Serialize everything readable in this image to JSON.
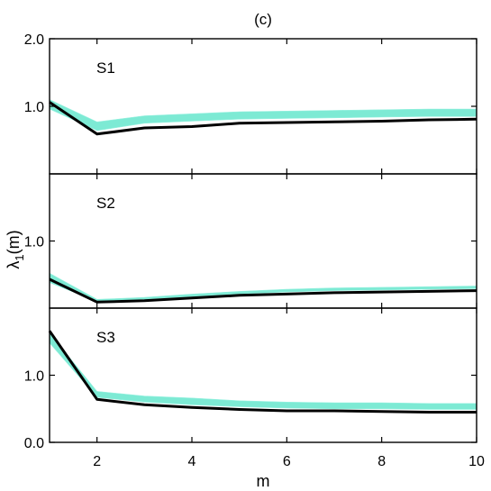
{
  "figure_label": "(c)",
  "ylabel_main": "λ",
  "ylabel_sub": "1",
  "ylabel_suffix": "(m)",
  "colors": {
    "band": "#6fe8d0",
    "mean": "#000000",
    "frame": "#000000"
  },
  "chart_data": [
    {
      "type": "line",
      "panel_label": "S1",
      "x": [
        1,
        2,
        3,
        4,
        5,
        6,
        7,
        8,
        9,
        10
      ],
      "ylim": [
        0.0,
        2.0
      ],
      "yticks": [
        1.0,
        2.0
      ],
      "ytick_labels": [
        "1.0",
        "2.0"
      ],
      "series": [
        {
          "values": [
            1.06,
            0.59,
            0.68,
            0.7,
            0.75,
            0.76,
            0.77,
            0.78,
            0.8,
            0.81
          ]
        }
      ],
      "band_lower": [
        0.96,
        0.64,
        0.75,
        0.78,
        0.81,
        0.82,
        0.83,
        0.84,
        0.85,
        0.85
      ],
      "band_upper": [
        1.1,
        0.77,
        0.86,
        0.89,
        0.92,
        0.93,
        0.94,
        0.95,
        0.96,
        0.96
      ]
    },
    {
      "type": "line",
      "panel_label": "S2",
      "x": [
        1,
        2,
        3,
        4,
        5,
        6,
        7,
        8,
        9,
        10
      ],
      "ylim": [
        0.0,
        2.0
      ],
      "yticks": [
        1.0
      ],
      "ytick_labels": [
        "1.0"
      ],
      "series": [
        {
          "values": [
            0.43,
            0.09,
            0.11,
            0.15,
            0.19,
            0.21,
            0.23,
            0.24,
            0.25,
            0.26
          ]
        }
      ],
      "band_lower": [
        0.38,
        0.1,
        0.13,
        0.17,
        0.21,
        0.24,
        0.26,
        0.27,
        0.28,
        0.29
      ],
      "band_upper": [
        0.52,
        0.13,
        0.16,
        0.21,
        0.25,
        0.28,
        0.3,
        0.31,
        0.32,
        0.33
      ]
    },
    {
      "type": "line",
      "panel_label": "S3",
      "x": [
        1,
        2,
        3,
        4,
        5,
        6,
        7,
        8,
        9,
        10
      ],
      "ylim": [
        0.0,
        2.0
      ],
      "yticks": [
        0.0,
        1.0
      ],
      "ytick_labels": [
        "0.0",
        "1.0"
      ],
      "series": [
        {
          "values": [
            1.66,
            0.64,
            0.56,
            0.52,
            0.49,
            0.47,
            0.47,
            0.46,
            0.45,
            0.45
          ]
        }
      ],
      "band_lower": [
        1.48,
        0.67,
        0.6,
        0.56,
        0.53,
        0.51,
        0.5,
        0.5,
        0.49,
        0.49
      ],
      "band_upper": [
        1.63,
        0.76,
        0.69,
        0.66,
        0.62,
        0.6,
        0.59,
        0.59,
        0.58,
        0.58
      ]
    }
  ],
  "xaxis": {
    "label": "m",
    "xlim": [
      1,
      10
    ],
    "ticks": [
      2,
      4,
      6,
      8,
      10
    ],
    "tick_labels": [
      "2",
      "4",
      "6",
      "8",
      "10"
    ]
  }
}
